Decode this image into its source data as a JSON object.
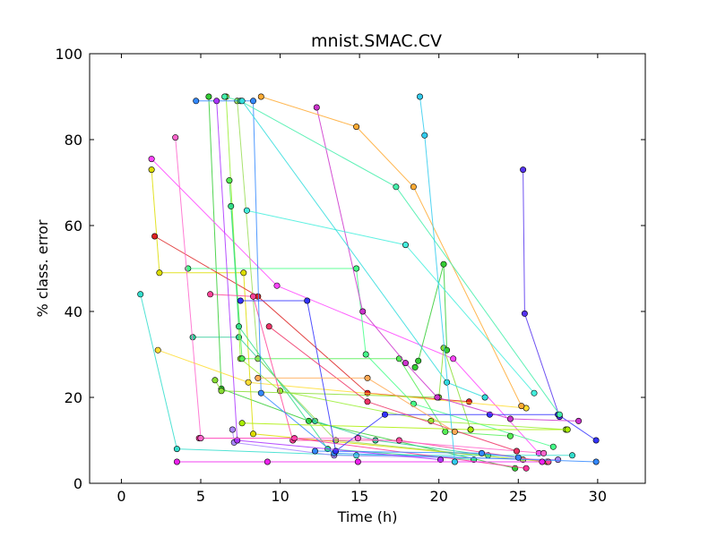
{
  "chart_data": {
    "type": "scatter",
    "title": "mnist.SMAC.CV",
    "xlabel": "Time (h)",
    "ylabel": "% class. error",
    "xlim": [
      -2,
      33
    ],
    "ylim": [
      0,
      100
    ],
    "xticks": [
      "0",
      "5",
      "10",
      "15",
      "20",
      "25",
      "30"
    ],
    "yticks": [
      "0",
      "20",
      "40",
      "60",
      "80",
      "100"
    ],
    "grid": false,
    "legend": "none",
    "series": [
      {
        "color": "#33cc33",
        "values": [
          [
            5.5,
            90
          ],
          [
            6.3,
            22
          ],
          [
            11.8,
            14.5
          ],
          [
            24.8,
            3.5
          ]
        ]
      },
      {
        "color": "#dddd00",
        "values": [
          [
            1.9,
            73
          ],
          [
            2.4,
            49
          ],
          [
            7.7,
            49
          ],
          [
            8.3,
            11.5
          ],
          [
            26.8,
            5
          ]
        ]
      },
      {
        "color": "#ff44ff",
        "values": [
          [
            1.9,
            75.5
          ],
          [
            9.8,
            46
          ],
          [
            20.9,
            29
          ],
          [
            26.3,
            7
          ]
        ]
      },
      {
        "color": "#dd2222",
        "values": [
          [
            2.1,
            57.5
          ],
          [
            8.6,
            43.5
          ],
          [
            15.5,
            21
          ],
          [
            21.9,
            19
          ]
        ]
      },
      {
        "color": "#33ddcc",
        "values": [
          [
            1.2,
            44
          ],
          [
            3.5,
            8
          ],
          [
            14.8,
            6.5
          ],
          [
            28.4,
            6.5
          ]
        ]
      },
      {
        "color": "#ffdd33",
        "values": [
          [
            2.3,
            31
          ],
          [
            8.0,
            23.5
          ],
          [
            25.5,
            17.5
          ]
        ]
      },
      {
        "color": "#44ff88",
        "values": [
          [
            4.2,
            50
          ],
          [
            14.8,
            50
          ],
          [
            15.4,
            30
          ],
          [
            18.4,
            18.5
          ],
          [
            27.2,
            8.5
          ]
        ]
      },
      {
        "color": "#33cc99",
        "values": [
          [
            4.5,
            34
          ],
          [
            7.4,
            34
          ],
          [
            12.2,
            14.5
          ],
          [
            16.0,
            10
          ],
          [
            23.1,
            6.5
          ]
        ]
      },
      {
        "color": "#99ee33",
        "values": [
          [
            6.6,
            90
          ],
          [
            7.5,
            29
          ],
          [
            10.0,
            21.5
          ],
          [
            19.5,
            14.5
          ],
          [
            28.0,
            12.5
          ]
        ]
      },
      {
        "color": "#99dd55",
        "values": [
          [
            7.3,
            89
          ],
          [
            8.6,
            29
          ],
          [
            13.5,
            10
          ],
          [
            25.3,
            5.5
          ]
        ]
      },
      {
        "color": "#55ee55",
        "values": [
          [
            6.8,
            70.5
          ],
          [
            7.6,
            29
          ],
          [
            17.5,
            29
          ],
          [
            20.4,
            12
          ],
          [
            24.5,
            11
          ]
        ]
      },
      {
        "color": "#33dd88",
        "values": [
          [
            6.9,
            64.5
          ],
          [
            7.4,
            36.5
          ],
          [
            13.0,
            8
          ],
          [
            22.2,
            5.5
          ]
        ]
      },
      {
        "color": "#88dd33",
        "values": [
          [
            5.9,
            24
          ],
          [
            6.3,
            21.5
          ],
          [
            20.0,
            20
          ],
          [
            20.3,
            31.5
          ],
          [
            22.0,
            12.5
          ]
        ]
      },
      {
        "color": "#aa88ff",
        "values": [
          [
            7.0,
            12.5
          ],
          [
            7.1,
            9.5
          ],
          [
            13.4,
            6.5
          ],
          [
            27.5,
            5.5
          ]
        ]
      },
      {
        "color": "#aaee00",
        "values": [
          [
            7.6,
            14
          ],
          [
            22.0,
            12.5
          ],
          [
            28.1,
            12.5
          ]
        ]
      },
      {
        "color": "#ff4499",
        "values": [
          [
            5.6,
            44
          ],
          [
            8.3,
            43.5
          ],
          [
            10.8,
            10
          ],
          [
            17.5,
            10
          ],
          [
            26.9,
            5
          ]
        ]
      },
      {
        "color": "#ff3399",
        "values": [
          [
            4.9,
            10.5
          ],
          [
            10.9,
            10.5
          ],
          [
            25.5,
            3.5
          ]
        ]
      },
      {
        "color": "#33cc33",
        "values": [
          [
            18.5,
            27
          ],
          [
            18.7,
            28.5
          ],
          [
            20.3,
            51
          ],
          [
            20.5,
            31
          ]
        ]
      },
      {
        "color": "#3388ff",
        "values": [
          [
            4.7,
            89
          ],
          [
            8.3,
            89
          ],
          [
            8.8,
            21
          ],
          [
            13.4,
            7
          ],
          [
            29.9,
            5
          ]
        ]
      },
      {
        "color": "#3388ff",
        "values": [
          [
            12.2,
            7.5
          ],
          [
            22.7,
            7
          ],
          [
            25.0,
            6
          ]
        ]
      },
      {
        "color": "#3333ff",
        "values": [
          [
            7.5,
            42.5
          ],
          [
            11.7,
            42.5
          ],
          [
            13.5,
            7.5
          ],
          [
            16.6,
            16
          ],
          [
            23.2,
            16
          ],
          [
            27.5,
            16
          ],
          [
            29.9,
            10
          ]
        ]
      },
      {
        "color": "#5533ee",
        "values": [
          [
            25.3,
            73
          ],
          [
            25.4,
            39.5
          ],
          [
            27.6,
            15.5
          ]
        ]
      },
      {
        "color": "#aa33ff",
        "values": [
          [
            6.0,
            89
          ],
          [
            7.3,
            10
          ],
          [
            20.1,
            5.5
          ]
        ]
      },
      {
        "color": "#cc33cc",
        "values": [
          [
            12.3,
            87.5
          ],
          [
            15.2,
            40
          ],
          [
            17.9,
            28
          ],
          [
            19.9,
            20
          ],
          [
            24.5,
            15
          ],
          [
            28.8,
            14.5
          ]
        ]
      },
      {
        "color": "#ff66cc",
        "values": [
          [
            3.4,
            80.5
          ],
          [
            5.0,
            10.5
          ],
          [
            14.9,
            10.5
          ],
          [
            26.6,
            7
          ]
        ]
      },
      {
        "color": "#ee22ee",
        "values": [
          [
            3.5,
            5
          ],
          [
            9.2,
            5
          ],
          [
            14.9,
            5
          ],
          [
            26.5,
            5
          ]
        ]
      },
      {
        "color": "#ffaa33",
        "values": [
          [
            8.8,
            90
          ],
          [
            14.8,
            83
          ],
          [
            18.4,
            69
          ],
          [
            25.2,
            18
          ]
        ]
      },
      {
        "color": "#44eeaa",
        "values": [
          [
            6.5,
            90
          ],
          [
            7.5,
            89
          ],
          [
            17.3,
            69
          ],
          [
            27.6,
            16
          ]
        ]
      },
      {
        "color": "#44eedd",
        "values": [
          [
            7.9,
            63.5
          ],
          [
            17.9,
            55.5
          ],
          [
            26.0,
            21
          ]
        ]
      },
      {
        "color": "#33dddd",
        "values": [
          [
            7.6,
            89
          ],
          [
            20.5,
            23.5
          ],
          [
            22.9,
            20
          ]
        ]
      },
      {
        "color": "#33ccee",
        "values": [
          [
            18.8,
            90
          ],
          [
            19.1,
            81
          ],
          [
            21.0,
            5
          ]
        ]
      },
      {
        "color": "#ee3366",
        "values": [
          [
            9.3,
            36.5
          ],
          [
            15.5,
            19
          ],
          [
            24.9,
            7.5
          ]
        ]
      },
      {
        "color": "#ffaa55",
        "values": [
          [
            8.6,
            24.5
          ],
          [
            15.5,
            24.5
          ],
          [
            21.0,
            12
          ]
        ]
      }
    ]
  }
}
